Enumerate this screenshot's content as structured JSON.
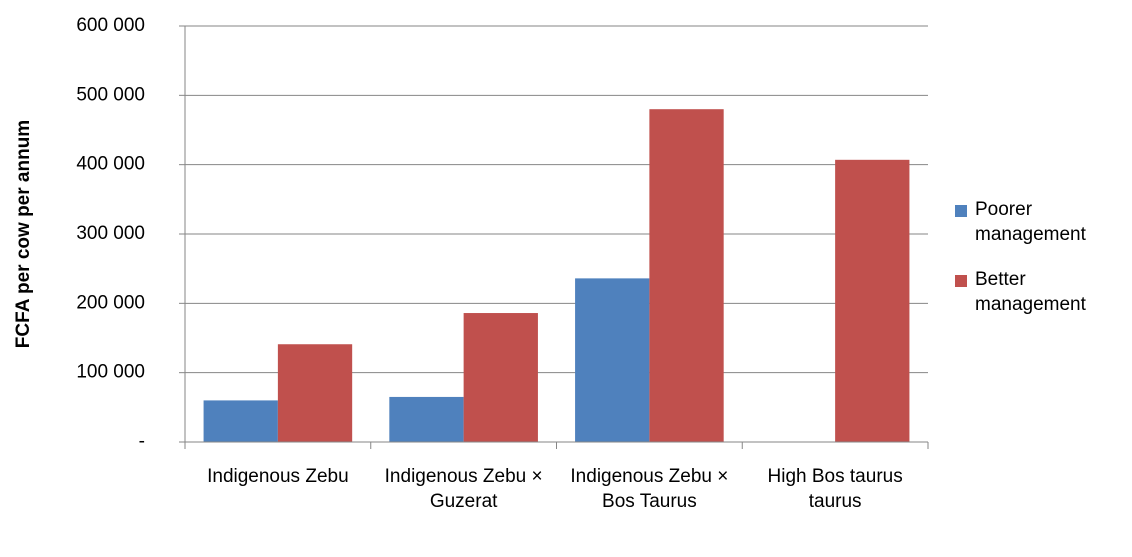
{
  "chart_data": {
    "type": "bar",
    "y_label": "FCFA per cow per annum",
    "categories": [
      "Indigenous Zebu",
      "Indigenous Zebu × Guzerat",
      "Indigenous Zebu × Bos Taurus",
      "High Bos taurus taurus"
    ],
    "series": [
      {
        "name": "Poorer management",
        "color": "#4f81bd",
        "values": [
          60000,
          65000,
          236000,
          null
        ]
      },
      {
        "name": "Better management",
        "color": "#c0504d",
        "values": [
          141000,
          186000,
          480000,
          407000
        ]
      }
    ],
    "ylim": [
      0,
      600000
    ],
    "yticks": [
      {
        "value": 0,
        "label": "-"
      },
      {
        "value": 100000,
        "label": "100 000"
      },
      {
        "value": 200000,
        "label": "200 000"
      },
      {
        "value": 300000,
        "label": "300 000"
      },
      {
        "value": 400000,
        "label": "400 000"
      },
      {
        "value": 500000,
        "label": "500 000"
      },
      {
        "value": 600000,
        "label": "600 000"
      }
    ],
    "grid": true,
    "legend": "right"
  }
}
